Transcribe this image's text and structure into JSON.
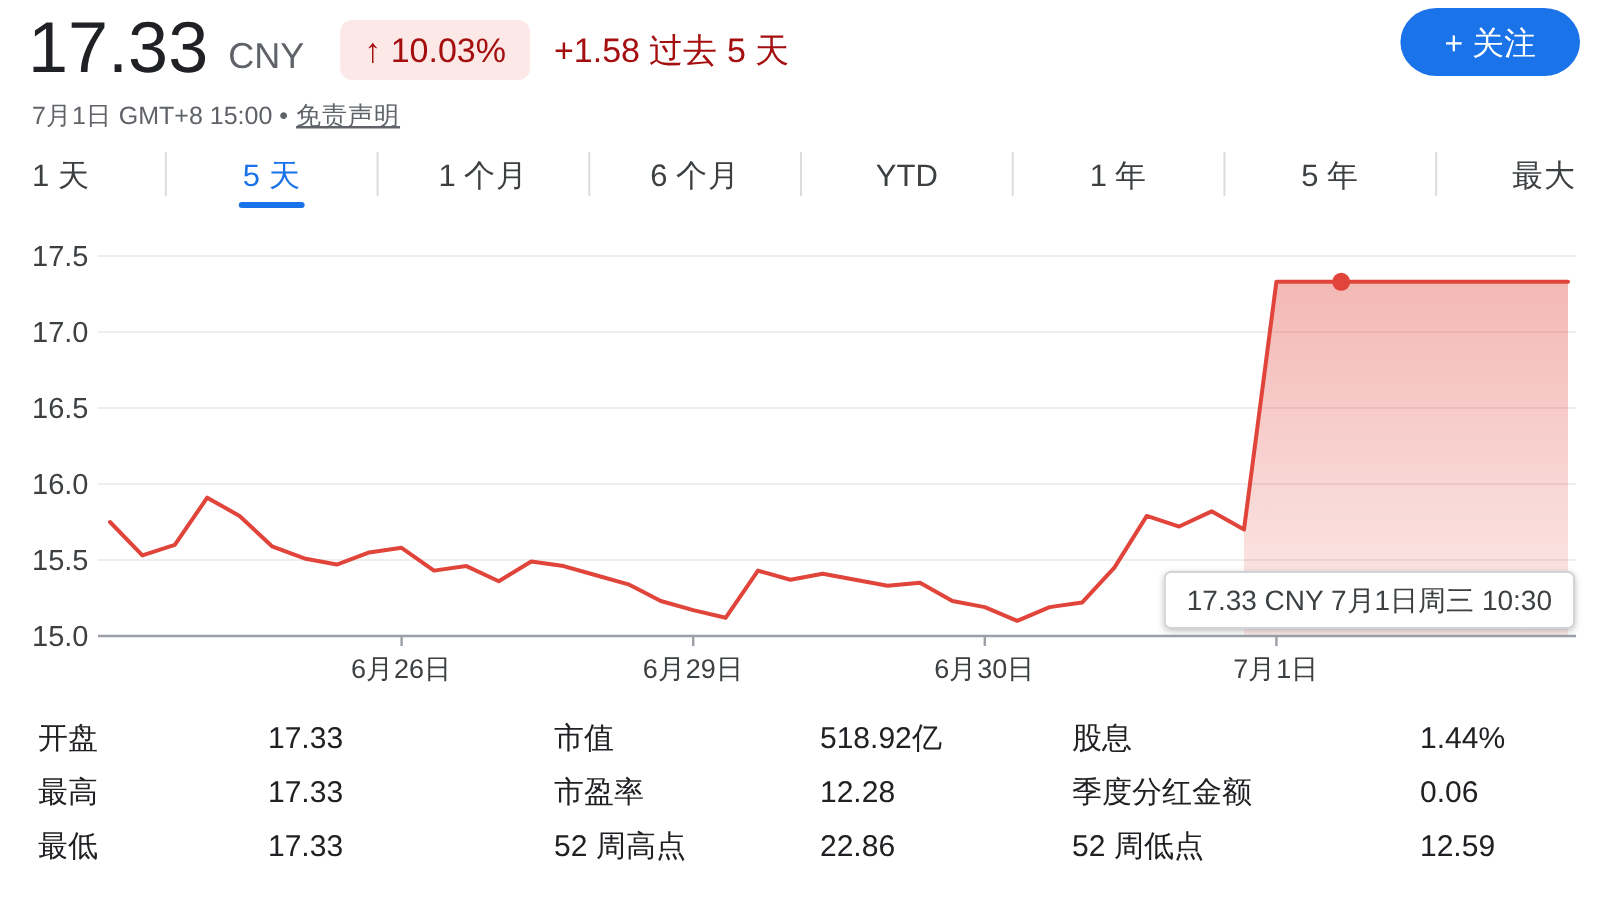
{
  "chart_data": [
    {
      "type": "other",
      "annotations": [
        "17.33",
        "CNY",
        "↑ 10.03%",
        "+1.58 过去 5 天",
        "+ 关注",
        "7月1日 GMT+8 15:00 •",
        "免责声明",
        "1 天",
        "5 天",
        "1 个月",
        "6 个月",
        "YTD",
        "1 年",
        "5 年",
        "最大"
      ]
    },
    {
      "type": "line",
      "categories": [
        null,
        null,
        null,
        null,
        null,
        null,
        null,
        null,
        null,
        "6月26日",
        null,
        null,
        null,
        null,
        null,
        null,
        null,
        null,
        "6月29日",
        null,
        null,
        null,
        null,
        null,
        null,
        null,
        null,
        "6月30日",
        null,
        null,
        null,
        null,
        null,
        null,
        null,
        null,
        "7月1日",
        null,
        null,
        null,
        null,
        null,
        null,
        null,
        null,
        null
      ],
      "series": [
        {
          "type": "area",
          "color": "#e0443a",
          "values": [
            null,
            null,
            null,
            null,
            null,
            null,
            null,
            null,
            null,
            null,
            null,
            null,
            null,
            null,
            null,
            null,
            null,
            null,
            null,
            null,
            null,
            null,
            null,
            null,
            null,
            null,
            null,
            null,
            null,
            null,
            null,
            null,
            null,
            null,
            null,
            15.7,
            17.33,
            17.33,
            17.33,
            17.33,
            17.33,
            17.33,
            17.33,
            17.33,
            17.33,
            17.33
          ]
        },
        {
          "type": "line",
          "color": "#e0443a",
          "values": [
            15.75,
            15.53,
            15.6,
            15.91,
            15.79,
            15.59,
            15.51,
            15.47,
            15.55,
            15.58,
            15.43,
            15.46,
            15.36,
            15.49,
            15.46,
            15.4,
            15.34,
            15.23,
            15.17,
            15.12,
            15.43,
            15.37,
            15.41,
            15.37,
            15.33,
            15.35,
            15.23,
            15.19,
            15.1,
            15.19,
            15.22,
            15.45,
            15.79,
            15.72,
            15.82,
            15.7,
            17.33,
            17.33,
            17.33,
            17.33,
            17.33,
            17.33,
            17.33,
            17.33,
            17.33,
            17.33
          ]
        },
        {
          "type": "scatter",
          "color": "#e0443a",
          "values": [
            null,
            null,
            null,
            null,
            null,
            null,
            null,
            null,
            null,
            null,
            null,
            null,
            null,
            null,
            null,
            null,
            null,
            null,
            null,
            null,
            null,
            null,
            null,
            null,
            null,
            null,
            null,
            null,
            null,
            null,
            null,
            null,
            null,
            null,
            null,
            null,
            null,
            null,
            17.33,
            null,
            null,
            null,
            null,
            null,
            null,
            null
          ]
        }
      ],
      "ylim": [
        15,
        17.5
      ],
      "yticks": [
        {
          "value": 15,
          "label": "15.0"
        },
        15.5,
        {
          "value": 16,
          "label": "16.0"
        },
        16.5,
        {
          "value": 17,
          "label": "17.0"
        },
        17.5
      ],
      "grid": "y",
      "annotations": [
        "17.33 CNY  7月1日周三 10:30"
      ]
    },
    {
      "type": "other",
      "annotations": [
        "开盘",
        "17.33",
        "市值",
        "518.92亿",
        "股息",
        "1.44%",
        "最高",
        "17.33",
        "市盈率",
        "12.28",
        "季度分红金额",
        "0.06",
        "最低",
        "17.33",
        "52 周高点",
        "22.86",
        "52 周低点",
        "12.59"
      ]
    }
  ]
}
